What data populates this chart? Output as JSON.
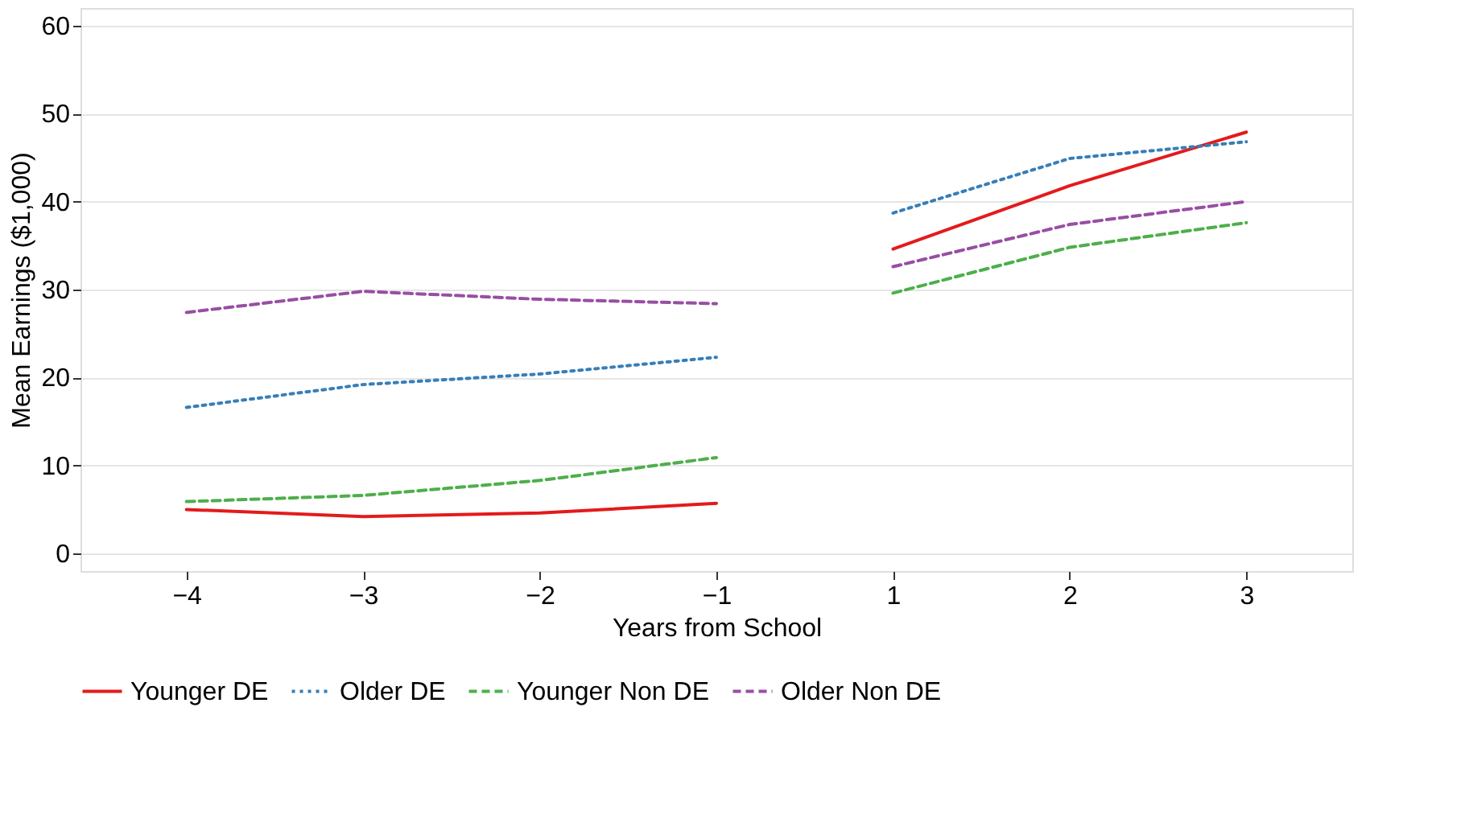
{
  "chart_data": {
    "type": "line",
    "xlabel": "Years from School",
    "ylabel": "Mean Earnings ($1,000)",
    "categories": [
      "−4",
      "−3",
      "−2",
      "−1",
      "1",
      "2",
      "3"
    ],
    "ylim": [
      -2,
      62
    ],
    "yticks": [
      0,
      10,
      20,
      30,
      40,
      50,
      60
    ],
    "grid": "y",
    "legend": "bottom",
    "marker": "none",
    "series": [
      {
        "name": "Younger DE",
        "color": "#e41a1c",
        "line_style": "solid",
        "values": [
          5.0,
          4.2,
          4.6,
          5.7,
          null,
          null,
          null
        ]
      },
      {
        "name": "Older DE",
        "color": "#377eb8",
        "line_style": "dotted",
        "values": [
          16.6,
          19.2,
          20.4,
          22.3,
          null,
          null,
          null
        ]
      },
      {
        "name": "Younger Non DE",
        "color": "#4daf4a",
        "line_style": "dashed",
        "values": [
          5.9,
          6.6,
          8.3,
          10.9,
          null,
          null,
          null
        ]
      },
      {
        "name": "Older Non DE",
        "color": "#984ea3",
        "line_style": "dashed",
        "values": [
          27.4,
          29.8,
          28.9,
          28.4,
          null,
          null,
          null
        ]
      },
      {
        "color": "#e41a1c",
        "line_style": "solid",
        "values": [
          null,
          null,
          null,
          null,
          34.6,
          41.8,
          47.9
        ]
      },
      {
        "color": "#377eb8",
        "line_style": "dotted",
        "values": [
          null,
          null,
          null,
          null,
          38.7,
          44.9,
          46.8
        ]
      },
      {
        "color": "#4daf4a",
        "line_style": "dashed",
        "values": [
          null,
          null,
          null,
          null,
          29.6,
          34.8,
          37.6
        ]
      },
      {
        "color": "#984ea3",
        "line_style": "dashed",
        "values": [
          null,
          null,
          null,
          null,
          32.6,
          37.4,
          40.0
        ]
      }
    ]
  }
}
